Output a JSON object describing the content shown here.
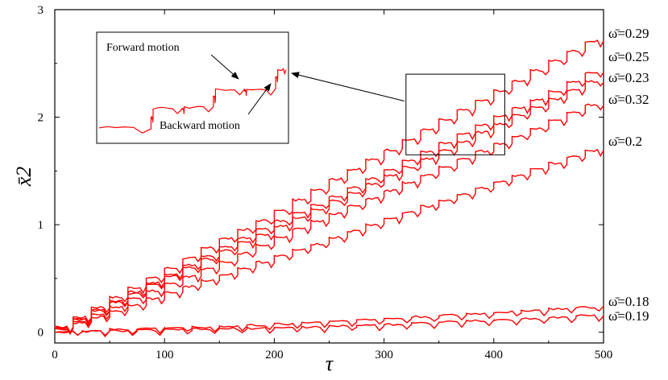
{
  "chart_data": {
    "type": "line",
    "xlabel": "τ",
    "ylabel": "x̄2",
    "xlim": [
      0,
      500
    ],
    "ylim": [
      -0.1,
      3
    ],
    "x_ticks": [
      "0",
      "100",
      "200",
      "300",
      "400",
      "500"
    ],
    "y_ticks": [
      "0",
      "1",
      "2",
      "3"
    ],
    "grid": false,
    "line_color": "#ff0000",
    "series": [
      {
        "name": "ω̄=0.29",
        "x": [
          0,
          50,
          100,
          150,
          200,
          250,
          300,
          350,
          400,
          450,
          500
        ],
        "values": [
          0,
          0.28,
          0.55,
          0.83,
          1.08,
          1.38,
          1.65,
          1.93,
          2.2,
          2.48,
          2.75
        ]
      },
      {
        "name": "ω̄=0.25",
        "x": [
          0,
          50,
          100,
          150,
          200,
          250,
          300,
          350,
          400,
          450,
          500
        ],
        "values": [
          0,
          0.25,
          0.5,
          0.75,
          1.0,
          1.22,
          1.47,
          1.72,
          1.97,
          2.2,
          2.45
        ]
      },
      {
        "name": "ω̄=0.23",
        "x": [
          0,
          50,
          100,
          150,
          200,
          250,
          300,
          350,
          400,
          450,
          500
        ],
        "values": [
          0,
          0.24,
          0.48,
          0.72,
          0.95,
          1.18,
          1.42,
          1.65,
          1.9,
          2.13,
          2.37
        ]
      },
      {
        "name": "ω̄=0.32",
        "x": [
          0,
          50,
          100,
          150,
          200,
          250,
          300,
          350,
          400,
          450,
          500
        ],
        "values": [
          0,
          0.2,
          0.42,
          0.62,
          0.85,
          1.07,
          1.28,
          1.5,
          1.72,
          1.93,
          2.15
        ]
      },
      {
        "name": "ω̄=0.2",
        "x": [
          0,
          50,
          100,
          150,
          200,
          250,
          300,
          350,
          400,
          450,
          500
        ],
        "values": [
          0,
          0.17,
          0.34,
          0.51,
          0.68,
          0.85,
          1.03,
          1.2,
          1.37,
          1.54,
          1.72
        ]
      },
      {
        "name": "ω̄=0.18",
        "x": [
          0,
          50,
          100,
          150,
          200,
          250,
          300,
          350,
          400,
          450,
          500
        ],
        "values": [
          0,
          0.02,
          0.04,
          0.05,
          0.07,
          0.1,
          0.12,
          0.15,
          0.18,
          0.21,
          0.24
        ]
      },
      {
        "name": "ω̄=0.19",
        "x": [
          0,
          50,
          100,
          150,
          200,
          250,
          300,
          350,
          400,
          450,
          500
        ],
        "values": [
          0,
          0.01,
          0.02,
          0.03,
          0.04,
          0.05,
          0.07,
          0.09,
          0.11,
          0.13,
          0.16
        ]
      }
    ],
    "annotations": [
      "Forward motion",
      "Backward motion"
    ],
    "inset": {
      "x": [
        320,
        345,
        346,
        360,
        361,
        375,
        376,
        390,
        391,
        405,
        406,
        410
      ],
      "values": [
        1.7,
        1.72,
        1.86,
        1.87,
        1.84,
        1.9,
        2.0,
        2.02,
        1.98,
        2.05,
        2.16,
        2.18
      ]
    }
  }
}
